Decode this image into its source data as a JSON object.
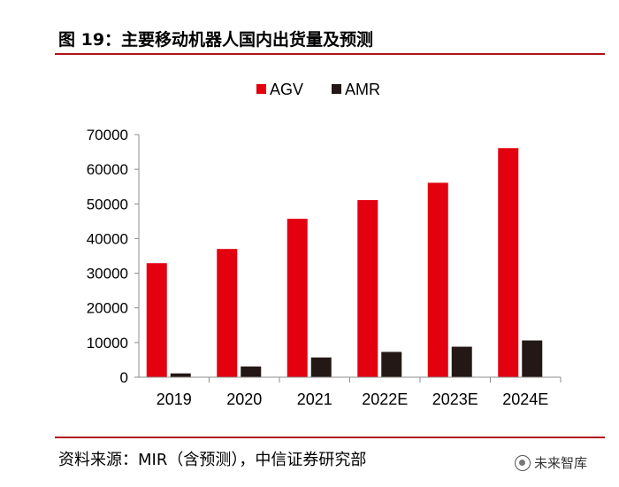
{
  "figure": {
    "title": "图 19：主要移动机器人国内出货量及预测",
    "source": "资料来源：MIR（含预测），中信证券研究部",
    "watermark": "未来智库"
  },
  "colors": {
    "accent": "#b0121c",
    "agv": "#e3000f",
    "amr": "#231815"
  },
  "chart_data": {
    "type": "bar",
    "title": "",
    "xlabel": "",
    "ylabel": "",
    "categories": [
      "2019",
      "2020",
      "2021",
      "2022E",
      "2023E",
      "2024E"
    ],
    "series": [
      {
        "name": "AGV",
        "values": [
          32900,
          37000,
          45700,
          51100,
          56100,
          66100
        ]
      },
      {
        "name": "AMR",
        "values": [
          1100,
          3100,
          5700,
          7300,
          8800,
          10600
        ]
      }
    ],
    "ylim": [
      0,
      70000
    ],
    "yticks": [
      0,
      10000,
      20000,
      30000,
      40000,
      50000,
      60000,
      70000
    ],
    "legend": "top-center",
    "grid": false
  }
}
